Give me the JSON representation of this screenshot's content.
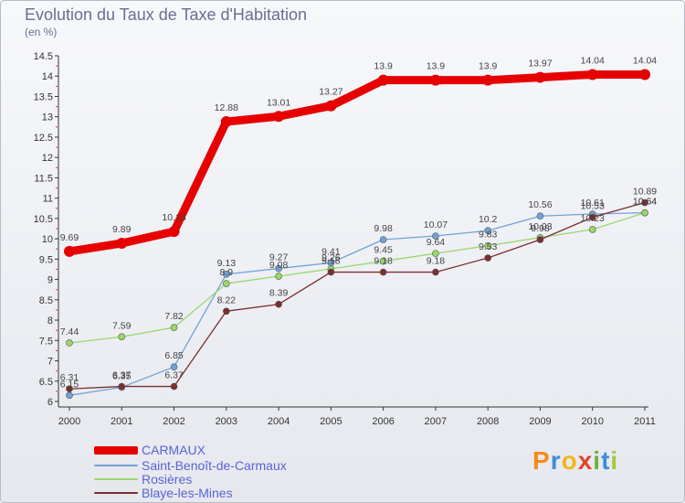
{
  "title": "Evolution du Taux de Taxe d'Habitation",
  "subtitle": "(en %)",
  "logo": {
    "text": "Proxiti",
    "colors": [
      "#f28c1a",
      "#3a8fd8",
      "#f2b61a",
      "#e0442a",
      "#6bb33a",
      "#3a8fd8",
      "#a5c83a"
    ]
  },
  "chart_data": {
    "type": "line",
    "x": [
      "2000",
      "2001",
      "2002",
      "2003",
      "2004",
      "2005",
      "2006",
      "2007",
      "2008",
      "2009",
      "2010",
      "2011"
    ],
    "ylim": [
      6,
      14.5
    ],
    "yticks": [
      "6",
      "6.5",
      "7",
      "7.5",
      "8",
      "8.5",
      "9",
      "9.5",
      "10",
      "10.5",
      "11",
      "11.5",
      "12",
      "12.5",
      "13",
      "13.5",
      "14",
      "14.5"
    ],
    "grid": false,
    "legend_position": "bottom-left",
    "series": [
      {
        "name": "CARMAUX",
        "color": "#e60000",
        "values": [
          9.69,
          9.89,
          10.18,
          12.88,
          13.01,
          13.27,
          13.9,
          13.9,
          13.9,
          13.97,
          14.04,
          14.04
        ],
        "labels": [
          "9.69",
          "9.89",
          "10.18",
          "12.88",
          "13.01",
          "13.27",
          "13.9",
          "13.9",
          "13.9",
          "13.97",
          "14.04",
          "14.04"
        ]
      },
      {
        "name": "Saint-Benoît-de-Carmaux",
        "color": "#6fa3d8",
        "values": [
          6.15,
          6.35,
          6.85,
          9.13,
          9.27,
          9.41,
          9.98,
          10.07,
          10.2,
          10.56,
          10.61,
          10.64
        ],
        "labels": [
          "6.15",
          "6.35",
          "6.85",
          "9.13",
          "9.27",
          "9.41",
          "9.98",
          "10.07",
          "10.2",
          "10.56",
          "10.61",
          "10.64"
        ]
      },
      {
        "name": "Rosières",
        "color": "#98d86a",
        "values": [
          7.44,
          7.59,
          7.82,
          8.9,
          9.08,
          9.26,
          9.45,
          9.64,
          9.83,
          10.03,
          10.23,
          10.64
        ],
        "labels": [
          "7.44",
          "7.59",
          "7.82",
          "8.9",
          "9.08",
          "9.26",
          "9.45",
          "9.64",
          "9.83",
          "10.03",
          "10.23",
          "10.64"
        ]
      },
      {
        "name": "Blaye-les-Mines",
        "color": "#7b2e2e",
        "values": [
          6.31,
          6.37,
          6.37,
          8.22,
          8.39,
          9.18,
          9.18,
          9.18,
          9.53,
          9.98,
          10.53,
          10.89
        ],
        "labels": [
          "6.31",
          "6.37",
          "6.37",
          "8.22",
          "8.39",
          "9.18",
          "9.18",
          "9.18",
          "9.53",
          "9.98",
          "10.53",
          "10.89"
        ]
      }
    ]
  }
}
